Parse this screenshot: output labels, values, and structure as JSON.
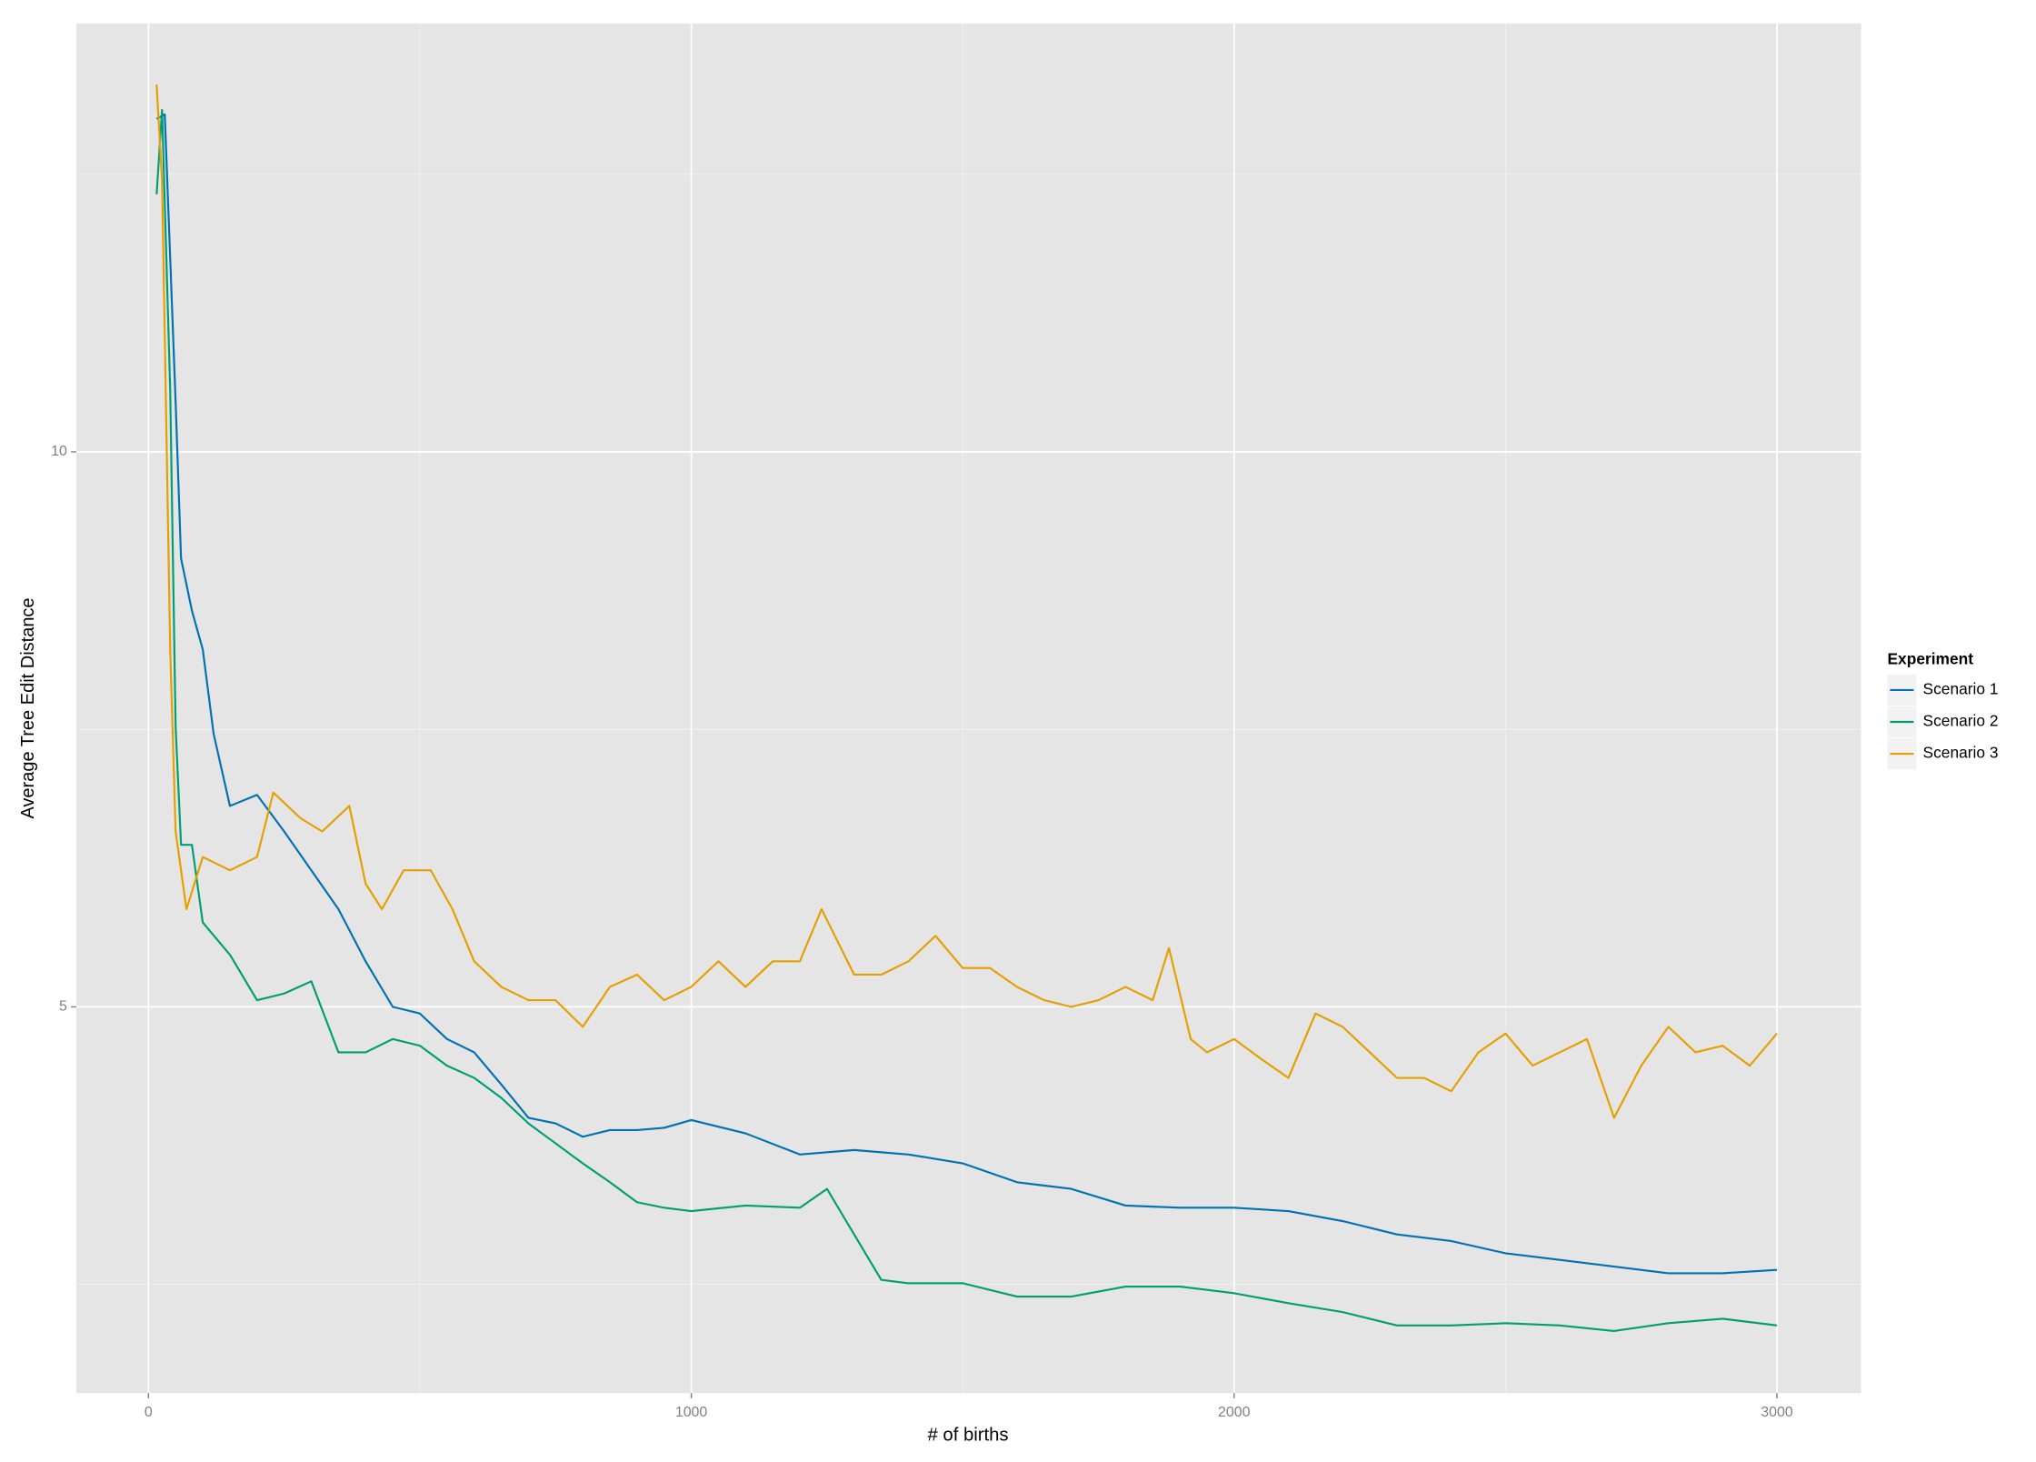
{
  "chart_data": {
    "type": "line",
    "xlabel": "# of births",
    "ylabel": "Average Tree Edit Distance",
    "xlim": [
      -133,
      3155
    ],
    "ylim": [
      1.52,
      13.86
    ],
    "xticks": [
      0,
      1000,
      2000,
      3000
    ],
    "yticks": [
      5,
      10
    ],
    "minor_xticks": [
      500,
      1500,
      2500
    ],
    "minor_yticks": [
      2.5,
      7.5,
      12.5
    ],
    "grid": true,
    "legend_title": "Experiment",
    "legend_position": "right",
    "series": [
      {
        "name": "Scenario 1",
        "color": "#0072b2",
        "x": [
          15,
          30,
          50,
          60,
          80,
          100,
          120,
          150,
          200,
          250,
          300,
          350,
          400,
          450,
          500,
          550,
          600,
          650,
          700,
          750,
          800,
          850,
          900,
          950,
          1000,
          1100,
          1200,
          1300,
          1400,
          1500,
          1600,
          1700,
          1800,
          1900,
          2000,
          2100,
          2200,
          2300,
          2400,
          2500,
          2600,
          2700,
          2800,
          2900,
          3000
        ],
        "values": [
          13.0,
          13.04,
          10.45,
          9.04,
          8.57,
          8.22,
          7.46,
          6.81,
          6.91,
          6.58,
          6.23,
          5.88,
          5.41,
          5.0,
          4.94,
          4.71,
          4.59,
          4.3,
          4.0,
          3.95,
          3.83,
          3.89,
          3.89,
          3.91,
          3.98,
          3.86,
          3.67,
          3.71,
          3.67,
          3.59,
          3.42,
          3.36,
          3.21,
          3.19,
          3.19,
          3.16,
          3.07,
          2.95,
          2.89,
          2.78,
          2.72,
          2.66,
          2.6,
          2.6,
          2.63
        ]
      },
      {
        "name": "Scenario 2",
        "color": "#009e73",
        "x": [
          15,
          25,
          40,
          50,
          60,
          80,
          100,
          150,
          200,
          250,
          300,
          350,
          400,
          450,
          500,
          550,
          600,
          650,
          700,
          750,
          800,
          850,
          900,
          950,
          1000,
          1100,
          1200,
          1250,
          1300,
          1350,
          1400,
          1500,
          1600,
          1700,
          1800,
          1900,
          2000,
          2100,
          2200,
          2300,
          2400,
          2500,
          2600,
          2700,
          2800,
          2900,
          3000
        ],
        "values": [
          12.32,
          13.08,
          10.56,
          7.52,
          6.46,
          6.46,
          5.76,
          5.47,
          5.06,
          5.12,
          5.23,
          4.59,
          4.59,
          4.71,
          4.65,
          4.47,
          4.36,
          4.18,
          3.95,
          3.77,
          3.59,
          3.42,
          3.24,
          3.19,
          3.16,
          3.21,
          3.19,
          3.36,
          2.95,
          2.54,
          2.51,
          2.51,
          2.39,
          2.39,
          2.48,
          2.48,
          2.42,
          2.33,
          2.25,
          2.13,
          2.13,
          2.15,
          2.13,
          2.08,
          2.15,
          2.19,
          2.13
        ]
      },
      {
        "name": "Scenario 3",
        "color": "#e69f00",
        "x": [
          15,
          25,
          40,
          50,
          70,
          100,
          150,
          200,
          230,
          280,
          320,
          370,
          400,
          430,
          470,
          520,
          560,
          600,
          650,
          700,
          750,
          800,
          850,
          900,
          950,
          1000,
          1050,
          1100,
          1150,
          1200,
          1240,
          1300,
          1350,
          1400,
          1450,
          1500,
          1550,
          1600,
          1650,
          1700,
          1750,
          1800,
          1850,
          1880,
          1920,
          1950,
          2000,
          2050,
          2100,
          2150,
          2200,
          2250,
          2300,
          2350,
          2400,
          2450,
          2500,
          2550,
          2600,
          2650,
          2700,
          2750,
          2800,
          2850,
          2900,
          2950,
          3000
        ],
        "values": [
          13.31,
          12.44,
          8.22,
          6.58,
          5.88,
          6.35,
          6.23,
          6.35,
          6.93,
          6.7,
          6.58,
          6.81,
          6.11,
          5.88,
          6.23,
          6.23,
          5.88,
          5.41,
          5.18,
          5.06,
          5.06,
          4.82,
          5.18,
          5.29,
          5.06,
          5.18,
          5.41,
          5.18,
          5.41,
          5.41,
          5.88,
          5.29,
          5.29,
          5.41,
          5.64,
          5.35,
          5.35,
          5.18,
          5.06,
          5.0,
          5.06,
          5.18,
          5.06,
          5.53,
          4.71,
          4.59,
          4.71,
          4.53,
          4.36,
          4.94,
          4.82,
          4.59,
          4.36,
          4.36,
          4.24,
          4.59,
          4.76,
          4.47,
          4.59,
          4.71,
          4.0,
          4.47,
          4.82,
          4.59,
          4.65,
          4.47,
          4.76
        ]
      }
    ]
  }
}
